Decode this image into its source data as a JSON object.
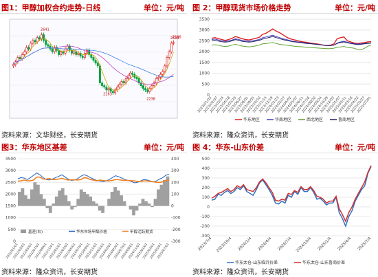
{
  "panels": [
    {
      "caption": "图1：甲醇加权合约走势-日线",
      "unit": "单位：元/吨",
      "source": "资料来源：文华财经，长安期货"
    },
    {
      "caption": "图 2：甲醇现货市场价格走势",
      "unit": "单位：元/吨",
      "source": "资料来源：隆众资讯，长安期货"
    },
    {
      "caption": "图3：华东地区基差",
      "unit": "单位：元/吨",
      "source": "资料来源：隆众资讯，长安期货"
    },
    {
      "caption": "图 4：华东-山东价差",
      "unit": "单位：元/吨",
      "source": "资料来源：隆众资讯，长安期货"
    }
  ],
  "chart_data": [
    {
      "type": "candlestick",
      "title": "",
      "annotations": [
        "2641",
        "2586",
        "2263",
        "2238",
        "2584"
      ],
      "ylim": [
        2050,
        2750
      ],
      "closes": [
        2430,
        2450,
        2480,
        2470,
        2500,
        2520,
        2550,
        2540,
        2580,
        2600,
        2590,
        2620,
        2610,
        2641,
        2600,
        2570,
        2560,
        2540,
        2520,
        2550,
        2530,
        2500,
        2520,
        2510,
        2540,
        2560,
        2530,
        2510,
        2520,
        2500,
        2510,
        2490,
        2480,
        2510,
        2530,
        2500,
        2480,
        2460,
        2440,
        2420,
        2300,
        2280,
        2270,
        2250,
        2260,
        2240,
        2230,
        2250,
        2270,
        2290,
        2310,
        2300,
        2330,
        2350,
        2370,
        2360,
        2340,
        2330,
        2300,
        2280,
        2260,
        2250,
        2238,
        2260,
        2280,
        2300,
        2330,
        2340,
        2360,
        2380,
        2420,
        2480,
        2520,
        2580,
        2586
      ]
    },
    {
      "type": "line",
      "ylim": [
        0,
        3500
      ],
      "yticks": [
        0,
        500,
        1000,
        1500,
        2000,
        2500,
        3000,
        3500
      ],
      "xticks": [
        "2023/01/03",
        "2023/02/07",
        "2023/03/14",
        "2023/04/18",
        "2023/05/23",
        "2023/06/27",
        "2023/08/01",
        "2023/09/05",
        "2023/10/10",
        "2023/11/14",
        "2023/12/19",
        "2024/01/23",
        "2024/02/27",
        "2024/04/02",
        "2024/05/07",
        "2024/06/11",
        "2024/07/16",
        "2024/08/20",
        "2024/09/24",
        "2024/10/29",
        "2024/12/03",
        "2025/01/07",
        "2025/02/11",
        "2025/03/18",
        "2025/04/22",
        "2025/05/27",
        "2025/07/01"
      ],
      "series": [
        {
          "name": "华东地区",
          "color": "#e02020",
          "values": [
            2620,
            2650,
            2600,
            2560,
            2520,
            2560,
            2620,
            2700,
            2650,
            2600,
            2560,
            2540,
            2580,
            2620,
            2660,
            2800,
            2850,
            2950,
            3050,
            2950,
            2880,
            2780,
            2680,
            2600,
            2560,
            2520,
            2480,
            2450,
            2430,
            2400,
            2380,
            2360,
            2330,
            2300,
            2280,
            2300,
            2350,
            2600,
            2650,
            2680,
            2500,
            2450,
            2400,
            2380,
            2400,
            2420,
            2450,
            2460
          ]
        },
        {
          "name": "华南地区",
          "color": "#4040c0",
          "values": [
            2560,
            2580,
            2540,
            2500,
            2480,
            2500,
            2540,
            2600,
            2560,
            2520,
            2500,
            2480,
            2500,
            2530,
            2560,
            2640,
            2680,
            2720,
            2760,
            2700,
            2650,
            2600,
            2560,
            2520,
            2480,
            2460,
            2440,
            2420,
            2400,
            2380,
            2360,
            2340,
            2320,
            2300,
            2280,
            2280,
            2300,
            2400,
            2450,
            2480,
            2440,
            2400,
            2370,
            2350,
            2360,
            2380,
            2390,
            2400
          ]
        },
        {
          "name": "西北地区",
          "color": "#60a030",
          "values": [
            2300,
            2320,
            2300,
            2260,
            2240,
            2260,
            2300,
            2340,
            2300,
            2260,
            2240,
            2220,
            2240,
            2270,
            2300,
            2360,
            2380,
            2400,
            2420,
            2380,
            2340,
            2320,
            2300,
            2280,
            2260,
            2240,
            2230,
            2220,
            2200,
            2200,
            2180,
            2170,
            2160,
            2150,
            2140,
            2140,
            2160,
            2200,
            2220,
            2240,
            2200,
            2180,
            2160,
            2100,
            2080,
            2150,
            2250,
            2300
          ]
        },
        {
          "name": "鲁南地区",
          "color": "#202060",
          "values": [
            2500,
            2520,
            2490,
            2460,
            2440,
            2460,
            2500,
            2560,
            2520,
            2480,
            2460,
            2440,
            2460,
            2490,
            2520,
            2580,
            2620,
            2660,
            2700,
            2650,
            2600,
            2560,
            2520,
            2490,
            2460,
            2440,
            2420,
            2400,
            2380,
            2370,
            2350,
            2340,
            2320,
            2300,
            2280,
            2280,
            2300,
            2380,
            2420,
            2450,
            2410,
            2380,
            2350,
            2330,
            2340,
            2360,
            2380,
            2400
          ]
        }
      ]
    },
    {
      "type": "bar+line",
      "yticks_left": [
        0,
        500,
        1000,
        1500,
        2000,
        2500,
        3000,
        3500
      ],
      "yticks_right": [
        -300,
        -200,
        -100,
        0,
        100,
        200,
        300,
        400
      ],
      "xticks": [
        "2022/01/01",
        "2022/03/01",
        "2022/05/01",
        "2022/07/01",
        "2022/09/01",
        "2022/11/01",
        "2023/01/01",
        "2023/03/01",
        "2023/05/01",
        "2023/07/01",
        "2023/09/01",
        "2023/11/01",
        "2024/01/01",
        "2024/03/01",
        "2024/05/01",
        "2024/07/01",
        "2024/09/01",
        "2024/11/01",
        "2025/01/01",
        "2025/03/01",
        "2025/05/01",
        "2025/07/01"
      ],
      "series": [
        {
          "name": "基差(右)",
          "color": "#999999",
          "values": [
            120,
            150,
            90,
            60,
            140,
            200,
            180,
            100,
            60,
            -20,
            -60,
            20,
            80,
            130,
            150,
            90,
            40,
            -30,
            -10,
            60,
            140,
            120,
            100,
            80,
            40,
            20,
            -40,
            -60,
            0,
            60,
            120,
            160,
            130,
            90,
            40,
            0,
            -30,
            -80,
            -40,
            20,
            60,
            40,
            20,
            -10,
            60,
            140,
            180,
            220,
            250
          ]
        },
        {
          "name": "华东市场甲醇价格",
          "color": "#2060c0",
          "values": [
            2650,
            2700,
            2680,
            2620,
            2700,
            2800,
            2900,
            2820,
            2700,
            2620,
            2600,
            2640,
            2700,
            2760,
            2820,
            2720,
            2640,
            2580,
            2600,
            2660,
            2760,
            2820,
            2780,
            2700,
            2640,
            2580,
            2560,
            2520,
            2560,
            2620,
            2700,
            2780,
            2740,
            2680,
            2620,
            2580,
            2540,
            2480,
            2500,
            2560,
            2620,
            2600,
            2560,
            2520,
            2560,
            2640,
            2700,
            2800,
            2850
          ]
        },
        {
          "name": "甲醇活跃期货",
          "color": "#f08020",
          "values": [
            2550,
            2560,
            2600,
            2560,
            2570,
            2600,
            2720,
            2720,
            2640,
            2640,
            2660,
            2620,
            2620,
            2640,
            2670,
            2630,
            2600,
            2610,
            2610,
            2600,
            2620,
            2700,
            2680,
            2620,
            2600,
            2560,
            2600,
            2580,
            2560,
            2560,
            2580,
            2620,
            2610,
            2590,
            2580,
            2580,
            2570,
            2560,
            2540,
            2540,
            2560,
            2560,
            2540,
            2530,
            2500,
            2500,
            2520,
            2580,
            2600
          ]
        }
      ]
    },
    {
      "type": "line",
      "yticks": [
        -300,
        -200,
        -100,
        0,
        100,
        200,
        300,
        400,
        500
      ],
      "xticks": [
        "2023/7/4",
        "2023/10/4",
        "2024/1/4",
        "2024/4/4",
        "2024/7/4",
        "2024/10/4",
        "2025/1/4",
        "2025/4/4",
        "2025/7/4"
      ],
      "series": [
        {
          "name": "华东太仓-山东临沂价差",
          "color": "#3070c0",
          "values": [
            70,
            80,
            130,
            120,
            150,
            170,
            140,
            160,
            200,
            180,
            220,
            160,
            140,
            120,
            180,
            250,
            280,
            230,
            180,
            120,
            40,
            30,
            60,
            40,
            120,
            100,
            160,
            130,
            200,
            160,
            160,
            200,
            150,
            80,
            90,
            60,
            20,
            40,
            40,
            100,
            -60,
            -120,
            -200,
            -100,
            -40,
            60,
            120,
            180,
            220,
            350,
            420
          ]
        },
        {
          "name": "华东太仓-山东鲁南价差",
          "color": "#d03030",
          "values": [
            90,
            110,
            140,
            150,
            170,
            190,
            160,
            180,
            220,
            200,
            230,
            180,
            170,
            160,
            200,
            260,
            290,
            250,
            200,
            150,
            70,
            60,
            80,
            70,
            140,
            130,
            170,
            150,
            210,
            180,
            180,
            210,
            170,
            110,
            100,
            80,
            40,
            60,
            60,
            110,
            -20,
            -80,
            -150,
            -60,
            0,
            80,
            140,
            200,
            260,
            360,
            430
          ]
        }
      ]
    }
  ]
}
